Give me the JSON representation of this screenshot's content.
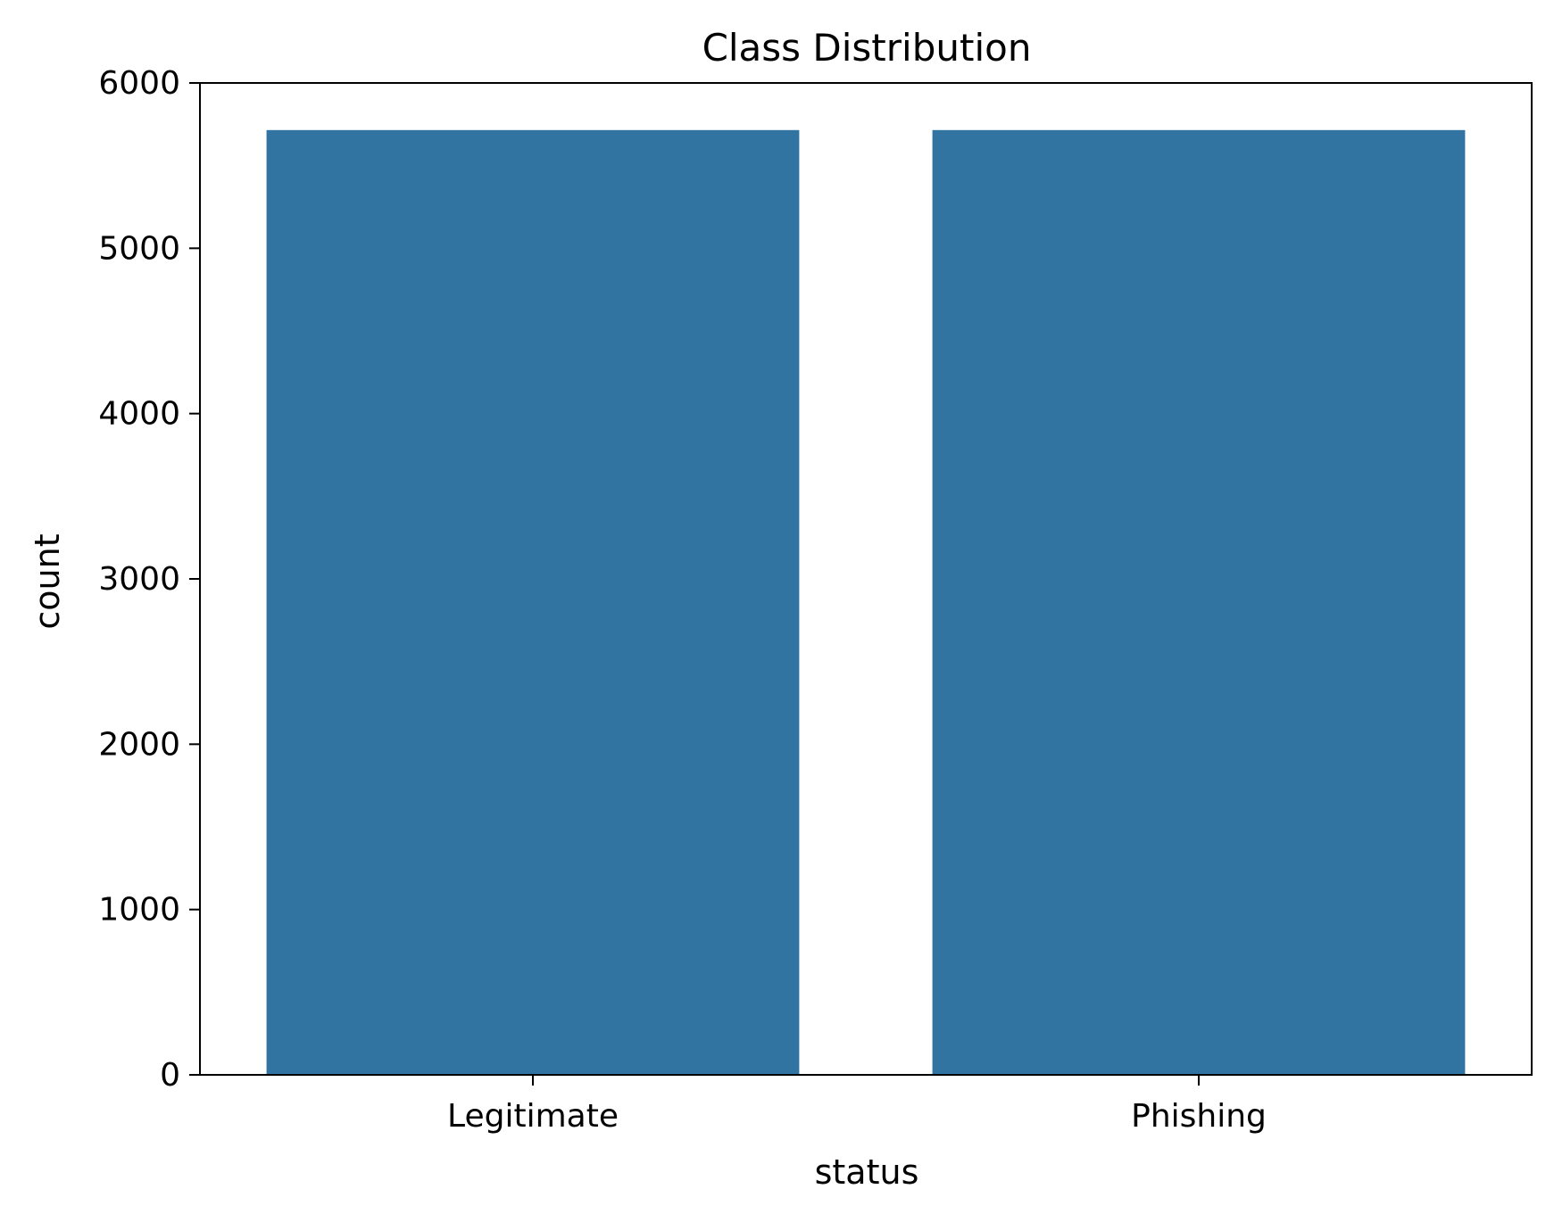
{
  "chart_data": {
    "type": "bar",
    "title": "Class Distribution",
    "xlabel": "status",
    "ylabel": "count",
    "categories": [
      "Legitimate",
      "Phishing"
    ],
    "values": [
      5715,
      5715
    ],
    "ylim": [
      0,
      6000
    ],
    "yticks": [
      "0",
      "1000",
      "2000",
      "3000",
      "4000",
      "5000",
      "6000"
    ],
    "grid": false,
    "legend": "none",
    "colors": {
      "bar": "#3274a1",
      "axes": "#000000",
      "background": "#ffffff"
    }
  }
}
